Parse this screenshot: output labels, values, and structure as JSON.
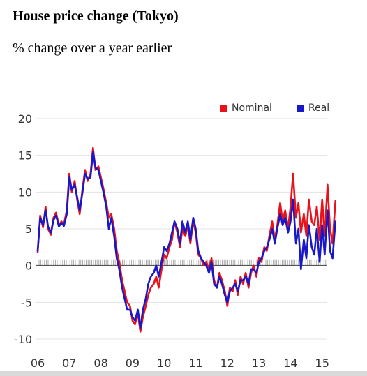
{
  "chart_data": {
    "type": "line",
    "title": "House price change (Tokyo)",
    "subtitle": "% change over a year earlier",
    "ylim": [
      -10,
      20
    ],
    "yticks": [
      "20",
      "15",
      "10",
      "5",
      "0",
      "-5",
      "-10"
    ],
    "xticks": [
      "06",
      "07",
      "08",
      "09",
      "10",
      "11",
      "12",
      "13",
      "14",
      "15"
    ],
    "x_start": 2006,
    "legend_position": "top-right",
    "grid": true,
    "series": [
      {
        "name": "Nominal",
        "color": "#e8121c",
        "points": [
          [
            2006.0,
            1.8
          ],
          [
            2006.08,
            6.8
          ],
          [
            2006.17,
            5.2
          ],
          [
            2006.25,
            8.0
          ],
          [
            2006.33,
            5.0
          ],
          [
            2006.42,
            4.2
          ],
          [
            2006.5,
            6.5
          ],
          [
            2006.58,
            7.2
          ],
          [
            2006.67,
            5.5
          ],
          [
            2006.75,
            6.0
          ],
          [
            2006.83,
            5.6
          ],
          [
            2006.92,
            7.5
          ],
          [
            2007.0,
            12.5
          ],
          [
            2007.08,
            10.0
          ],
          [
            2007.17,
            11.5
          ],
          [
            2007.25,
            9.0
          ],
          [
            2007.33,
            7.0
          ],
          [
            2007.42,
            10.5
          ],
          [
            2007.5,
            13.0
          ],
          [
            2007.58,
            11.5
          ],
          [
            2007.67,
            12.5
          ],
          [
            2007.75,
            16.0
          ],
          [
            2007.83,
            13.0
          ],
          [
            2007.92,
            13.5
          ],
          [
            2008.0,
            12.0
          ],
          [
            2008.08,
            10.5
          ],
          [
            2008.17,
            8.5
          ],
          [
            2008.25,
            6.5
          ],
          [
            2008.33,
            7.0
          ],
          [
            2008.42,
            5.0
          ],
          [
            2008.5,
            2.0
          ],
          [
            2008.58,
            0.5
          ],
          [
            2008.67,
            -2.0
          ],
          [
            2008.75,
            -3.5
          ],
          [
            2008.83,
            -5.0
          ],
          [
            2008.92,
            -5.5
          ],
          [
            2009.0,
            -7.5
          ],
          [
            2009.08,
            -8.0
          ],
          [
            2009.17,
            -6.5
          ],
          [
            2009.25,
            -9.0
          ],
          [
            2009.33,
            -7.0
          ],
          [
            2009.42,
            -5.5
          ],
          [
            2009.5,
            -4.0
          ],
          [
            2009.58,
            -3.0
          ],
          [
            2009.67,
            -2.5
          ],
          [
            2009.75,
            -1.5
          ],
          [
            2009.83,
            -3.0
          ],
          [
            2009.92,
            -0.5
          ],
          [
            2010.0,
            1.5
          ],
          [
            2010.08,
            1.0
          ],
          [
            2010.17,
            2.5
          ],
          [
            2010.25,
            3.5
          ],
          [
            2010.33,
            6.0
          ],
          [
            2010.42,
            4.5
          ],
          [
            2010.5,
            2.5
          ],
          [
            2010.58,
            5.0
          ],
          [
            2010.67,
            4.0
          ],
          [
            2010.75,
            5.5
          ],
          [
            2010.83,
            3.0
          ],
          [
            2010.92,
            6.0
          ],
          [
            2011.0,
            4.5
          ],
          [
            2011.08,
            1.5
          ],
          [
            2011.17,
            1.0
          ],
          [
            2011.25,
            0.0
          ],
          [
            2011.33,
            0.5
          ],
          [
            2011.42,
            -0.5
          ],
          [
            2011.5,
            1.0
          ],
          [
            2011.58,
            -2.0
          ],
          [
            2011.67,
            -3.0
          ],
          [
            2011.75,
            -1.0
          ],
          [
            2011.83,
            -2.0
          ],
          [
            2011.92,
            -3.5
          ],
          [
            2012.0,
            -5.5
          ],
          [
            2012.08,
            -3.0
          ],
          [
            2012.17,
            -3.5
          ],
          [
            2012.25,
            -2.0
          ],
          [
            2012.33,
            -4.0
          ],
          [
            2012.42,
            -1.5
          ],
          [
            2012.5,
            -2.5
          ],
          [
            2012.58,
            -1.0
          ],
          [
            2012.67,
            -3.0
          ],
          [
            2012.75,
            -1.0
          ],
          [
            2012.83,
            0.0
          ],
          [
            2012.92,
            -1.5
          ],
          [
            2013.0,
            1.0
          ],
          [
            2013.08,
            0.5
          ],
          [
            2013.17,
            2.5
          ],
          [
            2013.25,
            2.0
          ],
          [
            2013.33,
            4.0
          ],
          [
            2013.42,
            6.0
          ],
          [
            2013.5,
            3.5
          ],
          [
            2013.58,
            5.5
          ],
          [
            2013.67,
            8.5
          ],
          [
            2013.75,
            6.0
          ],
          [
            2013.83,
            7.5
          ],
          [
            2013.92,
            5.0
          ],
          [
            2014.0,
            8.0
          ],
          [
            2014.08,
            12.5
          ],
          [
            2014.17,
            6.5
          ],
          [
            2014.25,
            8.5
          ],
          [
            2014.33,
            4.5
          ],
          [
            2014.42,
            7.0
          ],
          [
            2014.5,
            4.0
          ],
          [
            2014.58,
            9.0
          ],
          [
            2014.67,
            6.0
          ],
          [
            2014.75,
            5.5
          ],
          [
            2014.83,
            8.0
          ],
          [
            2014.92,
            3.5
          ],
          [
            2015.0,
            9.0
          ],
          [
            2015.08,
            4.0
          ],
          [
            2015.17,
            11.0
          ],
          [
            2015.25,
            5.0
          ],
          [
            2015.33,
            3.0
          ],
          [
            2015.42,
            8.8
          ]
        ]
      },
      {
        "name": "Real",
        "color": "#1818c8",
        "points": [
          [
            2006.0,
            2.0
          ],
          [
            2006.08,
            6.5
          ],
          [
            2006.17,
            5.5
          ],
          [
            2006.25,
            7.5
          ],
          [
            2006.33,
            5.3
          ],
          [
            2006.42,
            4.5
          ],
          [
            2006.5,
            6.2
          ],
          [
            2006.58,
            6.8
          ],
          [
            2006.67,
            5.3
          ],
          [
            2006.75,
            5.8
          ],
          [
            2006.83,
            5.4
          ],
          [
            2006.92,
            7.0
          ],
          [
            2007.0,
            12.0
          ],
          [
            2007.08,
            10.3
          ],
          [
            2007.17,
            11.0
          ],
          [
            2007.25,
            9.3
          ],
          [
            2007.33,
            7.5
          ],
          [
            2007.42,
            10.0
          ],
          [
            2007.5,
            12.5
          ],
          [
            2007.58,
            11.8
          ],
          [
            2007.67,
            12.0
          ],
          [
            2007.75,
            15.5
          ],
          [
            2007.83,
            13.3
          ],
          [
            2007.92,
            13.0
          ],
          [
            2008.0,
            11.5
          ],
          [
            2008.08,
            10.0
          ],
          [
            2008.17,
            8.0
          ],
          [
            2008.25,
            5.0
          ],
          [
            2008.33,
            6.5
          ],
          [
            2008.42,
            4.0
          ],
          [
            2008.5,
            1.0
          ],
          [
            2008.58,
            -0.5
          ],
          [
            2008.67,
            -3.0
          ],
          [
            2008.75,
            -4.5
          ],
          [
            2008.83,
            -6.0
          ],
          [
            2008.92,
            -6.0
          ],
          [
            2009.0,
            -7.0
          ],
          [
            2009.08,
            -7.5
          ],
          [
            2009.17,
            -6.0
          ],
          [
            2009.25,
            -8.5
          ],
          [
            2009.33,
            -6.0
          ],
          [
            2009.42,
            -4.5
          ],
          [
            2009.5,
            -2.5
          ],
          [
            2009.58,
            -1.5
          ],
          [
            2009.67,
            -1.0
          ],
          [
            2009.75,
            0.0
          ],
          [
            2009.83,
            -1.5
          ],
          [
            2009.92,
            0.5
          ],
          [
            2010.0,
            2.5
          ],
          [
            2010.08,
            2.0
          ],
          [
            2010.17,
            3.0
          ],
          [
            2010.25,
            4.5
          ],
          [
            2010.33,
            6.0
          ],
          [
            2010.42,
            5.0
          ],
          [
            2010.5,
            3.0
          ],
          [
            2010.58,
            6.0
          ],
          [
            2010.67,
            4.5
          ],
          [
            2010.75,
            6.0
          ],
          [
            2010.83,
            3.5
          ],
          [
            2010.92,
            6.5
          ],
          [
            2011.0,
            5.0
          ],
          [
            2011.08,
            2.0
          ],
          [
            2011.17,
            1.0
          ],
          [
            2011.25,
            0.5
          ],
          [
            2011.33,
            0.0
          ],
          [
            2011.42,
            -1.0
          ],
          [
            2011.5,
            0.5
          ],
          [
            2011.58,
            -2.5
          ],
          [
            2011.67,
            -3.0
          ],
          [
            2011.75,
            -1.5
          ],
          [
            2011.83,
            -2.5
          ],
          [
            2011.92,
            -4.0
          ],
          [
            2012.0,
            -5.0
          ],
          [
            2012.08,
            -3.5
          ],
          [
            2012.17,
            -3.0
          ],
          [
            2012.25,
            -2.5
          ],
          [
            2012.33,
            -3.5
          ],
          [
            2012.42,
            -2.0
          ],
          [
            2012.5,
            -2.0
          ],
          [
            2012.58,
            -1.5
          ],
          [
            2012.67,
            -2.5
          ],
          [
            2012.75,
            -0.5
          ],
          [
            2012.83,
            -0.5
          ],
          [
            2012.92,
            -1.0
          ],
          [
            2013.0,
            0.5
          ],
          [
            2013.08,
            1.0
          ],
          [
            2013.17,
            2.0
          ],
          [
            2013.25,
            2.5
          ],
          [
            2013.33,
            3.5
          ],
          [
            2013.42,
            5.0
          ],
          [
            2013.5,
            3.0
          ],
          [
            2013.58,
            5.0
          ],
          [
            2013.67,
            7.0
          ],
          [
            2013.75,
            5.5
          ],
          [
            2013.83,
            6.5
          ],
          [
            2013.92,
            4.5
          ],
          [
            2014.0,
            6.0
          ],
          [
            2014.08,
            9.0
          ],
          [
            2014.17,
            3.0
          ],
          [
            2014.25,
            5.0
          ],
          [
            2014.33,
            -0.5
          ],
          [
            2014.42,
            3.5
          ],
          [
            2014.5,
            1.0
          ],
          [
            2014.58,
            5.5
          ],
          [
            2014.67,
            2.5
          ],
          [
            2014.75,
            1.5
          ],
          [
            2014.83,
            5.0
          ],
          [
            2014.92,
            0.5
          ],
          [
            2015.0,
            5.5
          ],
          [
            2015.08,
            1.5
          ],
          [
            2015.17,
            7.5
          ],
          [
            2015.25,
            2.0
          ],
          [
            2015.33,
            1.0
          ],
          [
            2015.42,
            6.0
          ]
        ]
      }
    ]
  }
}
